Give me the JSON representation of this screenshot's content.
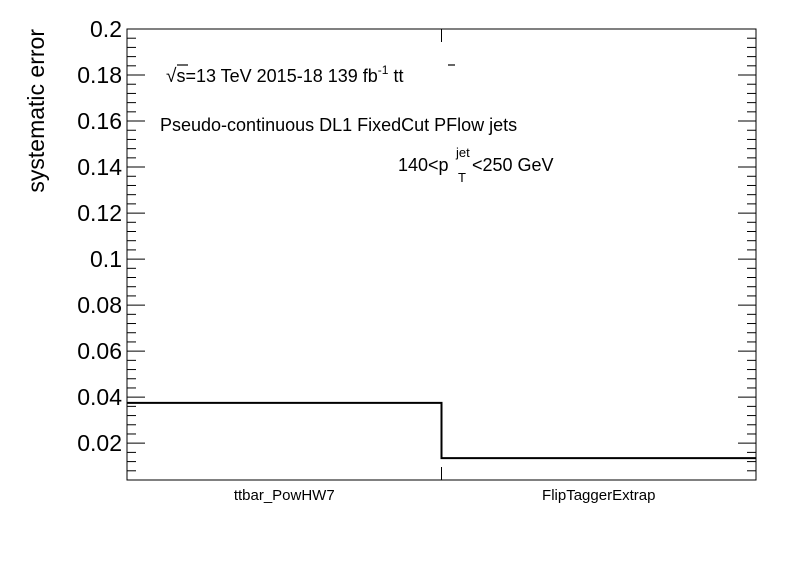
{
  "chart_data": {
    "type": "bar",
    "style": "step-histogram",
    "categories": [
      "ttbar_PowHW7",
      "FlipTaggerExtrap"
    ],
    "values": [
      0.0375,
      0.0135
    ],
    "ylabel": "systematic error",
    "xlabel": "",
    "ylim": [
      0.004,
      0.2
    ],
    "yticks": [
      "0.02",
      "0.04",
      "0.06",
      "0.08",
      "0.1",
      "0.12",
      "0.14",
      "0.16",
      "0.18",
      "0.2"
    ],
    "grid": false,
    "annotations": {
      "sqrt": "√",
      "energy": "s=13 TeV  2015-18  139 fb",
      "energy_sup": "-1",
      "sample": "tt",
      "tagger": "Pseudo-continuous DL1 FixedCut PFlow jets",
      "pt_low": "140<p",
      "pt_sup": "jet",
      "pt_sub": "T",
      "pt_high": "<250 GeV"
    }
  }
}
